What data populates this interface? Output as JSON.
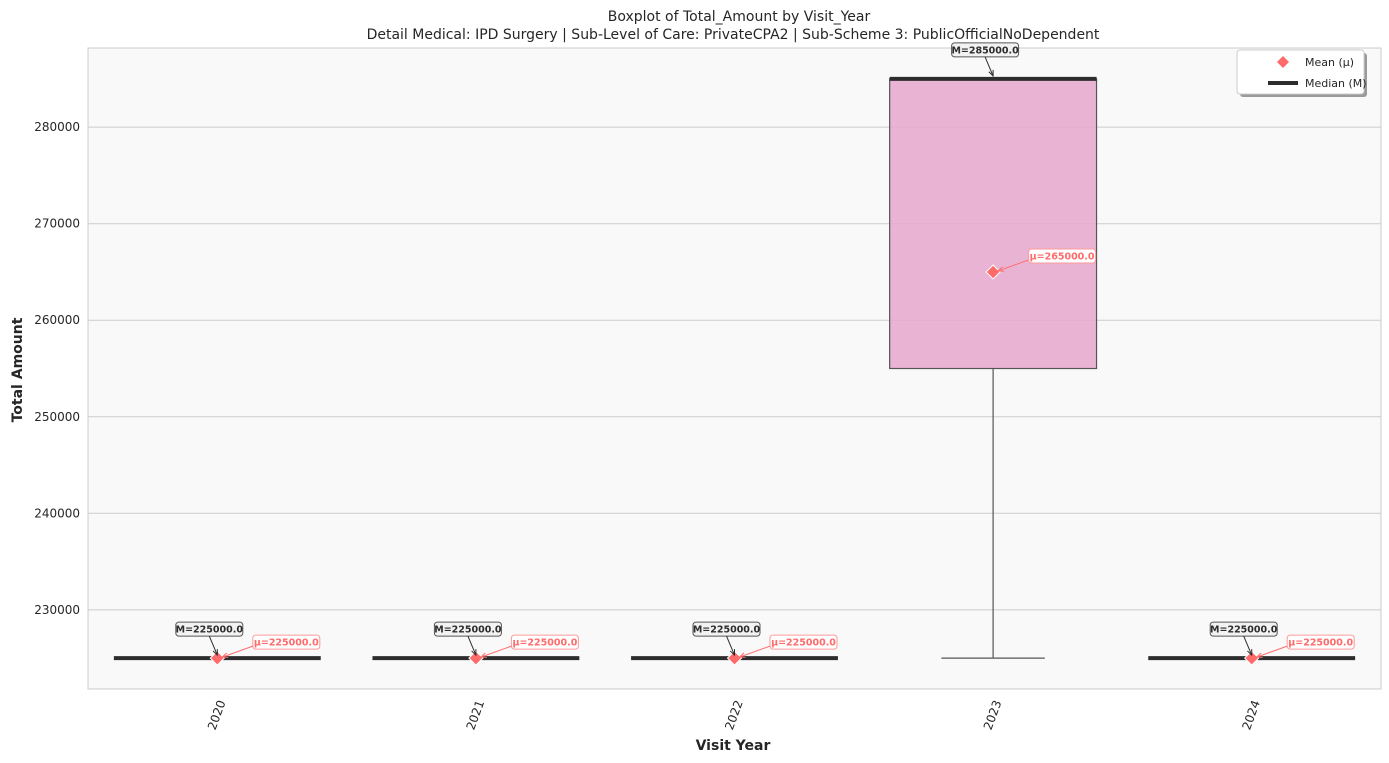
{
  "chart_data": {
    "type": "boxplot",
    "title": "Boxplot of Total_Amount by Visit_Year",
    "subtitle": "Detail Medical: IPD Surgery | Sub-Level of Care: PrivateCPA2 | Sub-Scheme 3: PublicOfficialNoDependent",
    "xlabel": "Visit Year",
    "ylabel": "Total Amount",
    "ylim": [
      221800,
      288200
    ],
    "yticks": [
      230000,
      240000,
      250000,
      260000,
      270000,
      280000
    ],
    "ytick_labels": [
      "230000",
      "240000",
      "250000",
      "260000",
      "270000",
      "280000"
    ],
    "grid": true,
    "legend_position": "top-right",
    "legend": [
      {
        "label": "Mean (μ)",
        "kind": "diamond",
        "color": "#ff6b6b"
      },
      {
        "label": "Median (M)",
        "kind": "line",
        "color": "#2d2d2d"
      }
    ],
    "categories": [
      "2020",
      "2021",
      "2022",
      "2023",
      "2024"
    ],
    "boxes": [
      {
        "category": "2020",
        "whisker_low": 225000,
        "q1": 225000,
        "median": 225000,
        "q3": 225000,
        "whisker_high": 225000,
        "mean": 225000,
        "median_label": "M=225000.0",
        "mean_label": "μ=225000.0",
        "fill": "#8c6bb1"
      },
      {
        "category": "2021",
        "whisker_low": 225000,
        "q1": 225000,
        "median": 225000,
        "q3": 225000,
        "whisker_high": 225000,
        "mean": 225000,
        "median_label": "M=225000.0",
        "mean_label": "μ=225000.0",
        "fill": "#66c2a5"
      },
      {
        "category": "2022",
        "whisker_low": 225000,
        "q1": 225000,
        "median": 225000,
        "q3": 225000,
        "whisker_high": 225000,
        "mean": 225000,
        "median_label": "M=225000.0",
        "mean_label": "μ=225000.0",
        "fill": "#fc8d62"
      },
      {
        "category": "2023",
        "whisker_low": 225000,
        "q1": 255000,
        "median": 285000,
        "q3": 285000,
        "whisker_high": 285000,
        "mean": 265000,
        "median_label": "M=285000.0",
        "mean_label": "μ=265000.0",
        "fill": "#e6a8cc"
      },
      {
        "category": "2024",
        "whisker_low": 225000,
        "q1": 225000,
        "median": 225000,
        "q3": 225000,
        "whisker_high": 225000,
        "mean": 225000,
        "median_label": "M=225000.0",
        "mean_label": "μ=225000.0",
        "fill": "#a6d854"
      }
    ],
    "colors": {
      "plot_background": "#f9f9f9",
      "grid": "#cccccc",
      "median": "#2d2d2d",
      "mean": "#ff6b6b",
      "whisker": "#555555"
    }
  }
}
